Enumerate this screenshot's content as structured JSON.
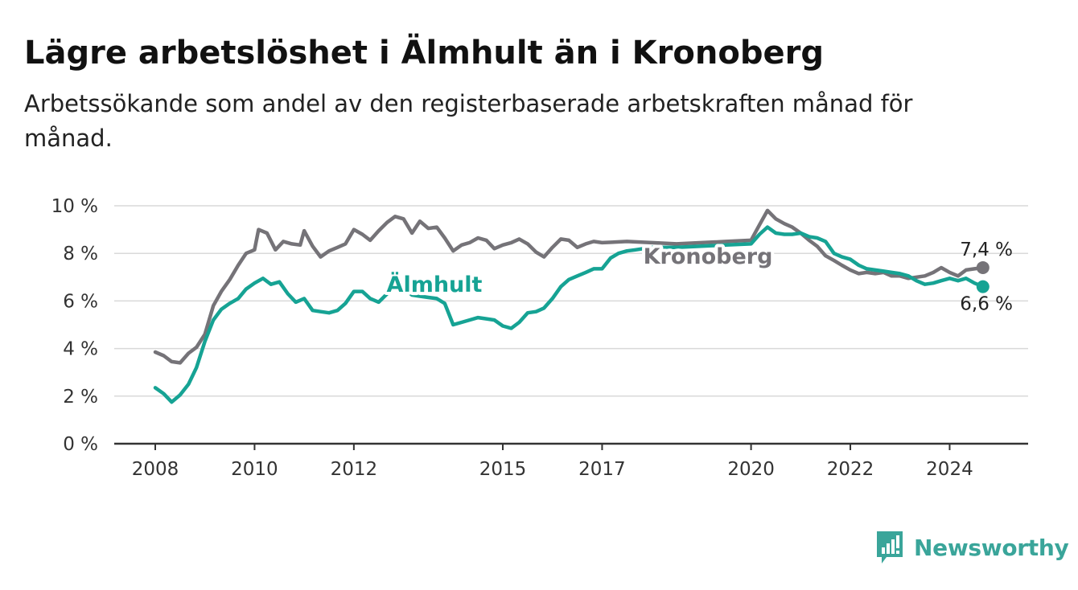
{
  "title": "Lägre arbetslöshet i Älmhult än i Kronoberg",
  "subtitle": "Arbetssökande som andel av den registerbaserade arbetskraften månad för månad.",
  "brand": {
    "name": "Newsworthy",
    "icon": "newsworthy-logo-icon"
  },
  "chart_data": {
    "type": "line",
    "title": "Lägre arbetslöshet i Älmhult än i Kronoberg",
    "subtitle": "Arbetssökande som andel av den registerbaserade arbetskraften månad för månad.",
    "xlabel": "",
    "ylabel": "",
    "xlim": [
      2008.0,
      2024.9
    ],
    "ylim": [
      0,
      10
    ],
    "y_ticks": [
      {
        "value": 0,
        "label": "0 %"
      },
      {
        "value": 2,
        "label": "2 %"
      },
      {
        "value": 4,
        "label": "4 %"
      },
      {
        "value": 6,
        "label": "6 %"
      },
      {
        "value": 8,
        "label": "8 %"
      },
      {
        "value": 10,
        "label": "10 %"
      }
    ],
    "x_ticks": [
      {
        "value": 2008,
        "label": "2008"
      },
      {
        "value": 2010,
        "label": "2010"
      },
      {
        "value": 2012,
        "label": "2012"
      },
      {
        "value": 2015,
        "label": "2015"
      },
      {
        "value": 2017,
        "label": "2017"
      },
      {
        "value": 2020,
        "label": "2020"
      },
      {
        "value": 2022,
        "label": "2022"
      },
      {
        "value": 2024,
        "label": "2024"
      }
    ],
    "grid": true,
    "legend": "inline labels",
    "series": [
      {
        "name": "Kronoberg",
        "color": "#757378",
        "end_label": "7,4 %",
        "points": [
          [
            2008.0,
            3.85
          ],
          [
            2008.17,
            3.7
          ],
          [
            2008.33,
            3.45
          ],
          [
            2008.5,
            3.4
          ],
          [
            2008.67,
            3.8
          ],
          [
            2008.83,
            4.05
          ],
          [
            2009.0,
            4.6
          ],
          [
            2009.17,
            5.8
          ],
          [
            2009.33,
            6.4
          ],
          [
            2009.5,
            6.9
          ],
          [
            2009.67,
            7.5
          ],
          [
            2009.83,
            8.0
          ],
          [
            2010.0,
            8.15
          ],
          [
            2010.08,
            9.0
          ],
          [
            2010.25,
            8.85
          ],
          [
            2010.42,
            8.15
          ],
          [
            2010.58,
            8.5
          ],
          [
            2010.75,
            8.4
          ],
          [
            2010.92,
            8.35
          ],
          [
            2011.0,
            8.95
          ],
          [
            2011.17,
            8.3
          ],
          [
            2011.33,
            7.85
          ],
          [
            2011.5,
            8.1
          ],
          [
            2011.67,
            8.25
          ],
          [
            2011.83,
            8.4
          ],
          [
            2012.0,
            9.0
          ],
          [
            2012.17,
            8.8
          ],
          [
            2012.33,
            8.55
          ],
          [
            2012.5,
            8.95
          ],
          [
            2012.67,
            9.3
          ],
          [
            2012.83,
            9.55
          ],
          [
            2013.0,
            9.45
          ],
          [
            2013.17,
            8.85
          ],
          [
            2013.33,
            9.35
          ],
          [
            2013.5,
            9.05
          ],
          [
            2013.67,
            9.1
          ],
          [
            2013.83,
            8.65
          ],
          [
            2014.0,
            8.1
          ],
          [
            2014.17,
            8.35
          ],
          [
            2014.33,
            8.45
          ],
          [
            2014.5,
            8.65
          ],
          [
            2014.67,
            8.55
          ],
          [
            2014.83,
            8.2
          ],
          [
            2015.0,
            8.35
          ],
          [
            2015.17,
            8.45
          ],
          [
            2015.33,
            8.6
          ],
          [
            2015.5,
            8.4
          ],
          [
            2015.67,
            8.05
          ],
          [
            2015.83,
            7.85
          ],
          [
            2016.0,
            8.25
          ],
          [
            2016.17,
            8.6
          ],
          [
            2016.33,
            8.55
          ],
          [
            2016.5,
            8.25
          ],
          [
            2016.67,
            8.4
          ],
          [
            2016.83,
            8.5
          ],
          [
            2017.0,
            8.45
          ],
          [
            2017.5,
            8.5
          ],
          [
            2018.0,
            8.45
          ],
          [
            2018.5,
            8.4
          ],
          [
            2019.0,
            8.45
          ],
          [
            2019.5,
            8.5
          ],
          [
            2020.0,
            8.55
          ],
          [
            2020.17,
            9.2
          ],
          [
            2020.33,
            9.8
          ],
          [
            2020.5,
            9.45
          ],
          [
            2020.67,
            9.25
          ],
          [
            2020.83,
            9.1
          ],
          [
            2021.0,
            8.85
          ],
          [
            2021.17,
            8.55
          ],
          [
            2021.33,
            8.3
          ],
          [
            2021.5,
            7.9
          ],
          [
            2021.67,
            7.7
          ],
          [
            2021.83,
            7.5
          ],
          [
            2022.0,
            7.3
          ],
          [
            2022.17,
            7.15
          ],
          [
            2022.33,
            7.2
          ],
          [
            2022.5,
            7.15
          ],
          [
            2022.67,
            7.2
          ],
          [
            2022.83,
            7.05
          ],
          [
            2023.0,
            7.05
          ],
          [
            2023.17,
            6.95
          ],
          [
            2023.33,
            7.0
          ],
          [
            2023.5,
            7.05
          ],
          [
            2023.67,
            7.2
          ],
          [
            2023.83,
            7.4
          ],
          [
            2024.0,
            7.2
          ],
          [
            2024.17,
            7.05
          ],
          [
            2024.33,
            7.3
          ],
          [
            2024.5,
            7.35
          ],
          [
            2024.67,
            7.4
          ]
        ]
      },
      {
        "name": "Älmhult",
        "color": "#16a394",
        "end_label": "6,6 %",
        "points": [
          [
            2008.0,
            2.35
          ],
          [
            2008.17,
            2.1
          ],
          [
            2008.33,
            1.75
          ],
          [
            2008.5,
            2.05
          ],
          [
            2008.67,
            2.5
          ],
          [
            2008.83,
            3.2
          ],
          [
            2009.0,
            4.3
          ],
          [
            2009.17,
            5.2
          ],
          [
            2009.33,
            5.65
          ],
          [
            2009.5,
            5.9
          ],
          [
            2009.67,
            6.1
          ],
          [
            2009.83,
            6.5
          ],
          [
            2010.0,
            6.75
          ],
          [
            2010.17,
            6.95
          ],
          [
            2010.33,
            6.7
          ],
          [
            2010.5,
            6.8
          ],
          [
            2010.67,
            6.3
          ],
          [
            2010.83,
            5.95
          ],
          [
            2011.0,
            6.1
          ],
          [
            2011.17,
            5.6
          ],
          [
            2011.33,
            5.55
          ],
          [
            2011.5,
            5.5
          ],
          [
            2011.67,
            5.6
          ],
          [
            2011.83,
            5.9
          ],
          [
            2012.0,
            6.4
          ],
          [
            2012.17,
            6.4
          ],
          [
            2012.33,
            6.1
          ],
          [
            2012.5,
            5.95
          ],
          [
            2012.67,
            6.3
          ],
          [
            2012.83,
            6.7
          ],
          [
            2013.0,
            6.55
          ],
          [
            2013.17,
            6.25
          ],
          [
            2013.33,
            6.2
          ],
          [
            2013.5,
            6.15
          ],
          [
            2013.67,
            6.1
          ],
          [
            2013.83,
            5.9
          ],
          [
            2014.0,
            5.0
          ],
          [
            2014.17,
            5.1
          ],
          [
            2014.33,
            5.2
          ],
          [
            2014.5,
            5.3
          ],
          [
            2014.67,
            5.25
          ],
          [
            2014.83,
            5.2
          ],
          [
            2015.0,
            4.95
          ],
          [
            2015.17,
            4.85
          ],
          [
            2015.33,
            5.1
          ],
          [
            2015.5,
            5.5
          ],
          [
            2015.67,
            5.55
          ],
          [
            2015.83,
            5.7
          ],
          [
            2016.0,
            6.1
          ],
          [
            2016.17,
            6.6
          ],
          [
            2016.33,
            6.9
          ],
          [
            2016.5,
            7.05
          ],
          [
            2016.67,
            7.2
          ],
          [
            2016.83,
            7.35
          ],
          [
            2017.0,
            7.35
          ],
          [
            2017.17,
            7.8
          ],
          [
            2017.33,
            8.0
          ],
          [
            2017.5,
            8.1
          ],
          [
            2017.67,
            8.15
          ],
          [
            2017.83,
            8.2
          ],
          [
            2018.0,
            8.25
          ],
          [
            2018.5,
            8.25
          ],
          [
            2019.0,
            8.3
          ],
          [
            2019.5,
            8.35
          ],
          [
            2020.0,
            8.4
          ],
          [
            2020.17,
            8.8
          ],
          [
            2020.33,
            9.1
          ],
          [
            2020.5,
            8.85
          ],
          [
            2020.67,
            8.8
          ],
          [
            2020.83,
            8.8
          ],
          [
            2021.0,
            8.85
          ],
          [
            2021.17,
            8.7
          ],
          [
            2021.33,
            8.65
          ],
          [
            2021.5,
            8.5
          ],
          [
            2021.67,
            8.0
          ],
          [
            2021.83,
            7.85
          ],
          [
            2022.0,
            7.75
          ],
          [
            2022.17,
            7.5
          ],
          [
            2022.33,
            7.35
          ],
          [
            2022.5,
            7.3
          ],
          [
            2022.67,
            7.25
          ],
          [
            2022.83,
            7.2
          ],
          [
            2023.0,
            7.15
          ],
          [
            2023.17,
            7.05
          ],
          [
            2023.33,
            6.85
          ],
          [
            2023.5,
            6.7
          ],
          [
            2023.67,
            6.75
          ],
          [
            2023.83,
            6.85
          ],
          [
            2024.0,
            6.95
          ],
          [
            2024.17,
            6.85
          ],
          [
            2024.33,
            6.95
          ],
          [
            2024.5,
            6.75
          ],
          [
            2024.67,
            6.6
          ]
        ]
      }
    ]
  }
}
